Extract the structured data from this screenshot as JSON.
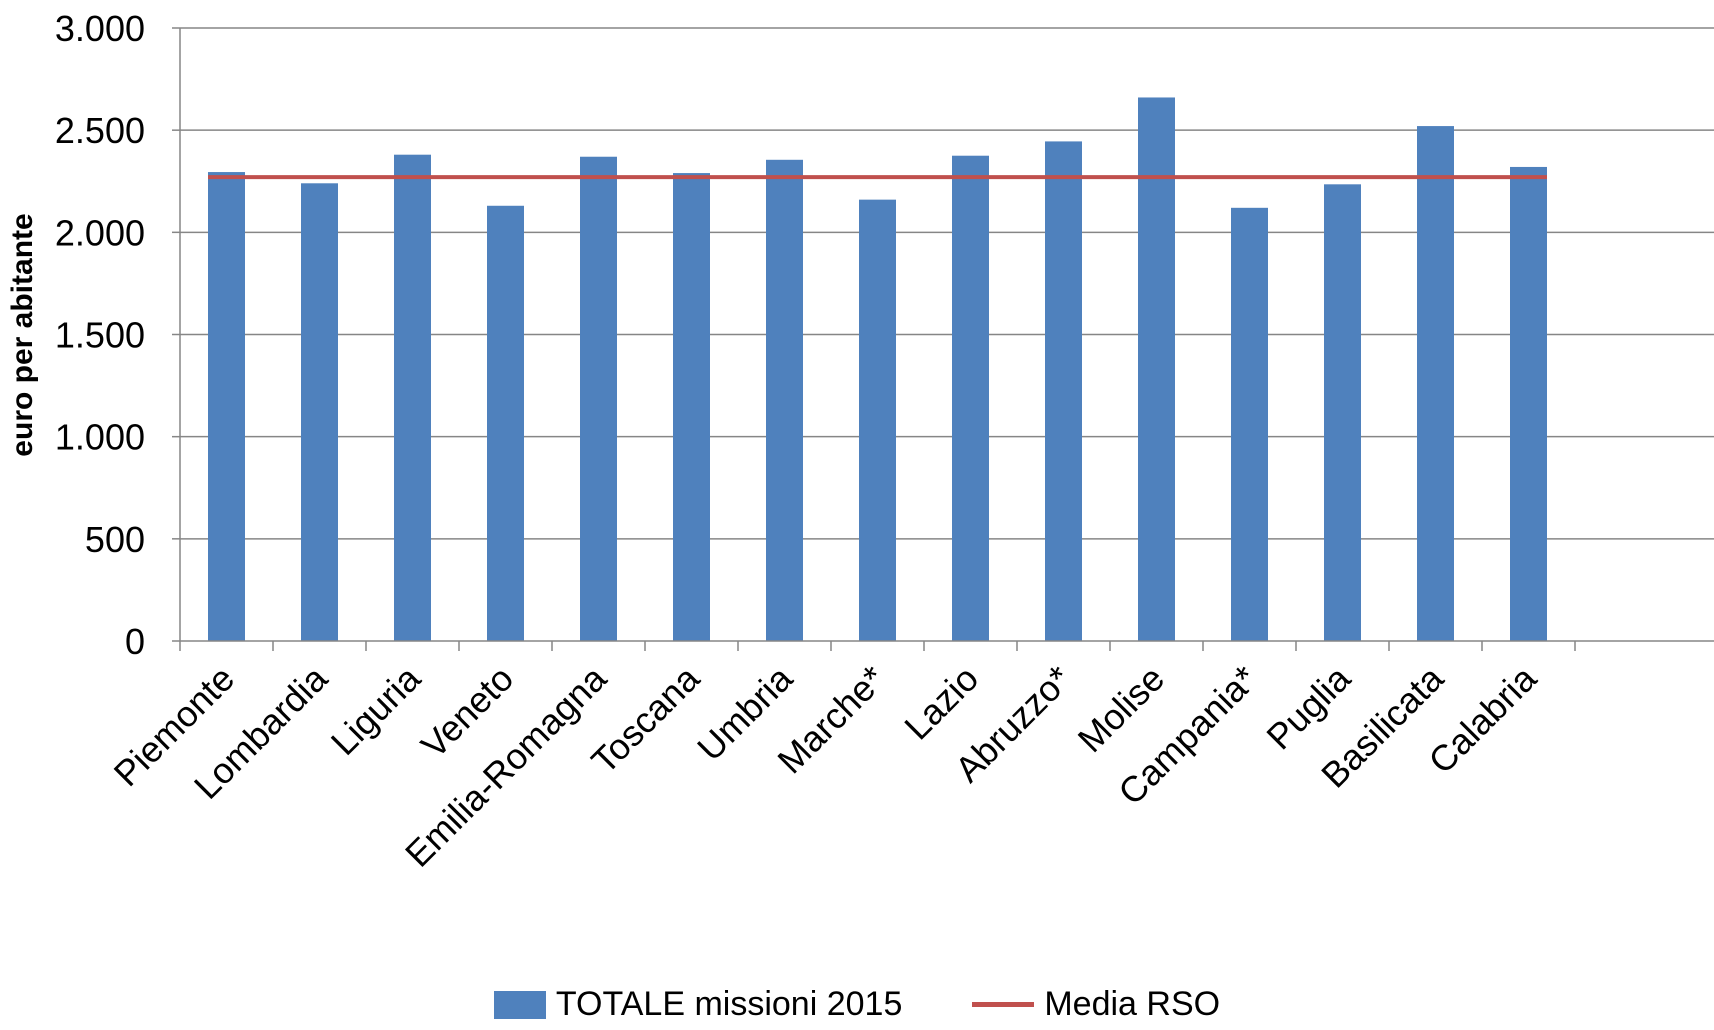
{
  "chart_data": {
    "type": "bar",
    "title": "",
    "xlabel": "",
    "ylabel": "euro per abitante",
    "ylim": [
      0,
      3000
    ],
    "yticks": [
      0,
      500,
      1000,
      1500,
      2000,
      2500,
      3000
    ],
    "ytick_labels": [
      "0",
      "500",
      "1.000",
      "1.500",
      "2.000",
      "2.500",
      "3.000"
    ],
    "grid": true,
    "legend_position": "bottom",
    "categories": [
      "Piemonte",
      "Lombardia",
      "Liguria",
      "Veneto",
      "Emilia-Romagna",
      "Toscana",
      "Umbria",
      "Marche*",
      "Lazio",
      "Abruzzo*",
      "Molise",
      "Campania*",
      "Puglia",
      "Basilicata",
      "Calabria"
    ],
    "series": [
      {
        "name": "TOTALE missioni 2015",
        "type": "bar",
        "color": "#4f81bd",
        "values": [
          2295,
          2240,
          2380,
          2130,
          2370,
          2290,
          2355,
          2160,
          2375,
          2445,
          2660,
          2120,
          2235,
          2520,
          2320
        ]
      },
      {
        "name": "Media RSO",
        "type": "line",
        "color": "#c0504d",
        "values": [
          2270,
          2270,
          2270,
          2270,
          2270,
          2270,
          2270,
          2270,
          2270,
          2270,
          2270,
          2270,
          2270,
          2270,
          2270
        ]
      }
    ]
  }
}
